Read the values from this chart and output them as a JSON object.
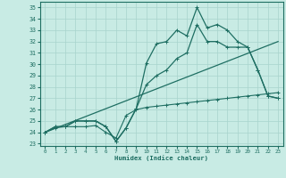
{
  "xlabel": "Humidex (Indice chaleur)",
  "bg_color": "#c8ebe4",
  "line_color": "#1e6e62",
  "grid_color": "#a8d4cc",
  "xlim": [
    -0.5,
    23.5
  ],
  "ylim": [
    22.8,
    35.5
  ],
  "xticks": [
    0,
    1,
    2,
    3,
    4,
    5,
    6,
    7,
    8,
    9,
    10,
    11,
    12,
    13,
    14,
    15,
    16,
    17,
    18,
    19,
    20,
    21,
    22,
    23
  ],
  "yticks": [
    23,
    24,
    25,
    26,
    27,
    28,
    29,
    30,
    31,
    32,
    33,
    34,
    35
  ],
  "line1_x": [
    0,
    1,
    2,
    3,
    4,
    5,
    6,
    7,
    8,
    9,
    10,
    11,
    12,
    13,
    14,
    15,
    16,
    17,
    18,
    19,
    20,
    21,
    22,
    23
  ],
  "line1_y": [
    24.0,
    24.5,
    24.5,
    25.0,
    25.0,
    25.0,
    24.5,
    23.2,
    24.4,
    26.1,
    30.1,
    31.8,
    32.0,
    33.0,
    32.5,
    35.0,
    33.2,
    33.5,
    33.0,
    32.0,
    31.5,
    29.5,
    27.2,
    27.0
  ],
  "line2_x": [
    0,
    1,
    2,
    3,
    4,
    5,
    6,
    7,
    8,
    9,
    10,
    11,
    12,
    13,
    14,
    15,
    16,
    17,
    18,
    19,
    20,
    21,
    22,
    23
  ],
  "line2_y": [
    24.0,
    24.5,
    24.5,
    25.0,
    25.0,
    25.0,
    24.5,
    23.2,
    24.4,
    26.1,
    28.2,
    29.0,
    29.5,
    30.5,
    31.0,
    33.5,
    32.0,
    32.0,
    31.5,
    31.5,
    31.5,
    29.5,
    27.2,
    27.0
  ],
  "line3_x": [
    0,
    23
  ],
  "line3_y": [
    24.0,
    32.0
  ],
  "line4_x": [
    0,
    1,
    2,
    3,
    4,
    5,
    6,
    7,
    8,
    9,
    10,
    11,
    12,
    13,
    14,
    15,
    16,
    17,
    18,
    19,
    20,
    21,
    22,
    23
  ],
  "line4_y": [
    24.0,
    24.4,
    24.5,
    24.5,
    24.5,
    24.6,
    24.0,
    23.5,
    25.5,
    26.0,
    26.2,
    26.3,
    26.4,
    26.5,
    26.6,
    26.7,
    26.8,
    26.9,
    27.0,
    27.1,
    27.2,
    27.3,
    27.4,
    27.5
  ]
}
